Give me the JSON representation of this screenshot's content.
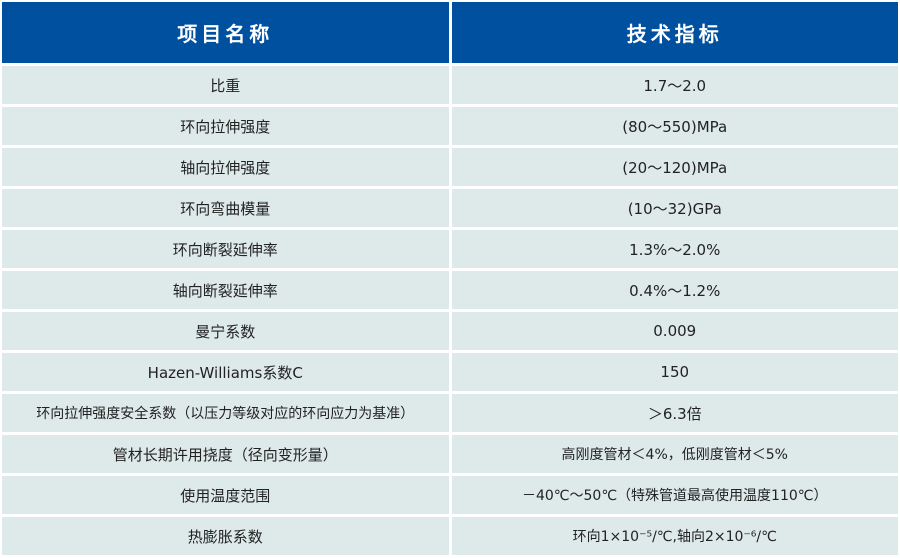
{
  "header": {
    "col1": "项目名称",
    "col2": "技术指标"
  },
  "rows": [
    {
      "name": "比重",
      "value": "1.7～2.0"
    },
    {
      "name": "环向拉伸强度",
      "value": "(80～550)MPa"
    },
    {
      "name": "轴向拉伸强度",
      "value": "(20～120)MPa"
    },
    {
      "name": "环向弯曲模量",
      "value": "(10～32)GPa"
    },
    {
      "name": "环向断裂延伸率",
      "value": "1.3%～2.0%"
    },
    {
      "name": "轴向断裂延伸率",
      "value": "0.4%～1.2%"
    },
    {
      "name": "曼宁系数",
      "value": "0.009"
    },
    {
      "name": "Hazen-Williams系数C",
      "value": "150"
    },
    {
      "name": "环向拉伸强度安全系数（以压力等级对应的环向应力为基准）",
      "value": "＞6.3倍"
    },
    {
      "name": "管材长期许用挠度（径向变形量）",
      "value": "高刚度管材＜4%，低刚度管材＜5%"
    },
    {
      "name": "使用温度范围",
      "value": "－40℃～50℃（特殊管道最高使用温度110℃）"
    },
    {
      "name": "热膨胀系数",
      "value": "环向1×10⁻⁵/℃,轴向2×10⁻⁶/℃"
    }
  ],
  "colors": {
    "header_bg": "#0050a0",
    "cell_bg": "#dee9e9"
  }
}
